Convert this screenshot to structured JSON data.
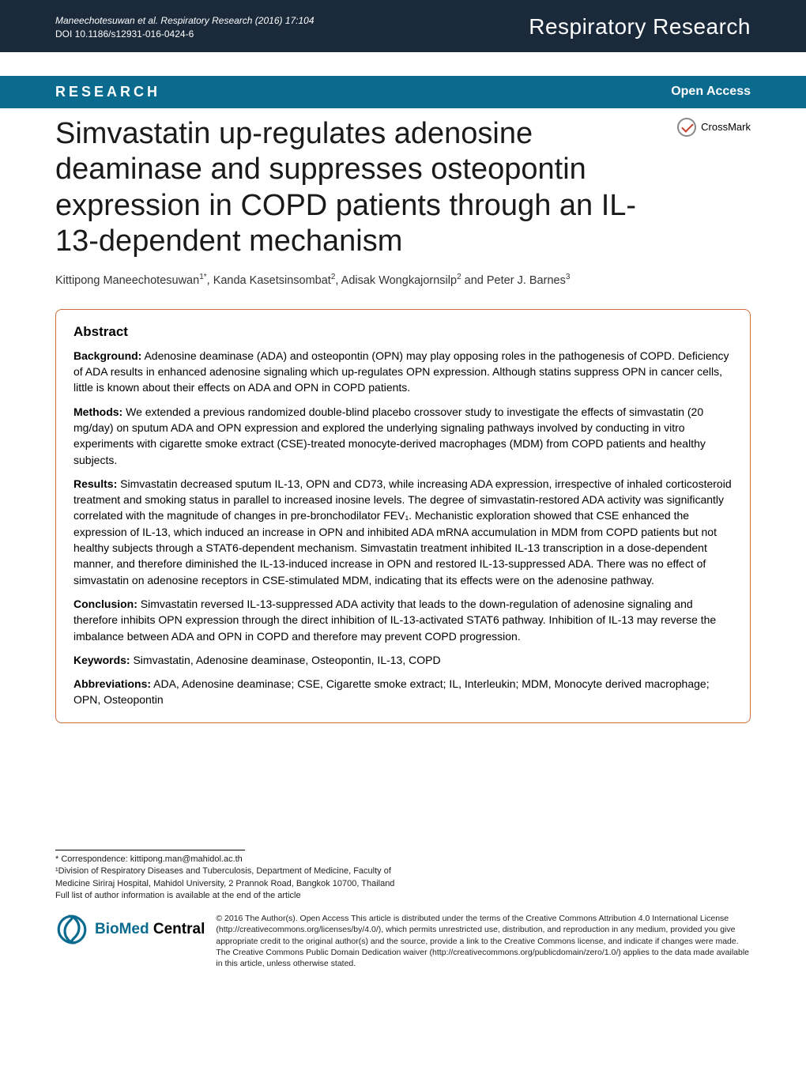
{
  "header": {
    "citation": "Maneechotesuwan et al. Respiratory Research  (2016) 17:104",
    "doi": "DOI 10.1186/s12931-016-0424-6",
    "journal": "Respiratory Research"
  },
  "research_bar": {
    "label": "RESEARCH",
    "open_access": "Open Access"
  },
  "crossmark_label": "CrossMark",
  "title": "Simvastatin up-regulates adenosine deaminase and suppresses osteopontin expression in COPD patients through an IL-13-dependent mechanism",
  "authors_html": "Kittipong Maneechotesuwan<sup>1*</sup>, Kanda Kasetsinsombat<sup>2</sup>, Adisak Wongkajornsilp<sup>2</sup> and Peter J. Barnes<sup>3</sup>",
  "abstract": {
    "heading": "Abstract",
    "background": {
      "label": "Background:",
      "text": " Adenosine deaminase (ADA) and osteopontin (OPN) may play opposing roles in the pathogenesis of COPD. Deficiency of ADA results in enhanced adenosine signaling which up-regulates OPN expression. Although statins suppress OPN in cancer cells, little is known about their effects on ADA and OPN in COPD patients."
    },
    "methods": {
      "label": "Methods:",
      "text": " We extended a previous randomized double-blind placebo crossover study to investigate the effects of simvastatin (20 mg/day) on sputum ADA and OPN expression and explored the underlying signaling pathways involved by conducting in vitro experiments with cigarette smoke extract (CSE)-treated monocyte-derived macrophages (MDM) from COPD patients and healthy subjects."
    },
    "results": {
      "label": "Results:",
      "text": " Simvastatin decreased sputum IL-13, OPN and CD73, while increasing ADA expression, irrespective of inhaled corticosteroid treatment and smoking status in parallel to increased inosine levels. The degree of simvastatin-restored ADA activity was significantly correlated with the magnitude of changes in pre-bronchodilator FEV₁. Mechanistic exploration showed that CSE enhanced the expression of IL-13, which induced an increase in OPN and inhibited ADA mRNA accumulation in MDM from COPD patients but not healthy subjects through a STAT6-dependent mechanism. Simvastatin treatment inhibited IL-13 transcription in a dose-dependent manner, and therefore diminished the IL-13-induced increase in OPN and restored IL-13-suppressed ADA. There was no effect of simvastatin on adenosine receptors in CSE-stimulated MDM, indicating that its effects were on the adenosine pathway."
    },
    "conclusion": {
      "label": "Conclusion:",
      "text": " Simvastatin reversed IL-13-suppressed ADA activity that leads to the down-regulation of adenosine signaling and therefore inhibits OPN expression through the direct inhibition of IL-13-activated STAT6 pathway. Inhibition of IL-13 may reverse the imbalance between ADA and OPN in COPD and therefore may prevent COPD progression."
    },
    "keywords": {
      "label": "Keywords:",
      "text": " Simvastatin, Adenosine deaminase, Osteopontin, IL-13, COPD"
    },
    "abbreviations": {
      "label": "Abbreviations:",
      "text": " ADA, Adenosine deaminase; CSE, Cigarette smoke extract; IL, Interleukin; MDM, Monocyte derived macrophage; OPN, Osteopontin"
    }
  },
  "footer": {
    "correspondence": "* Correspondence: kittipong.man@mahidol.ac.th",
    "affiliation": "¹Division of Respiratory Diseases and Tuberculosis, Department of Medicine, Faculty of Medicine Siriraj Hospital, Mahidol University, 2 Prannok Road, Bangkok 10700, Thailand",
    "full_list": "Full list of author information is available at the end of the article",
    "bmc_label_bio": "BioMed",
    "bmc_label_central": " Central",
    "license": "© 2016 The Author(s). Open Access This article is distributed under the terms of the Creative Commons Attribution 4.0 International License (http://creativecommons.org/licenses/by/4.0/), which permits unrestricted use, distribution, and reproduction in any medium, provided you give appropriate credit to the original author(s) and the source, provide a link to the Creative Commons license, and indicate if changes were made. The Creative Commons Public Domain Dedication waiver (http://creativecommons.org/publicdomain/zero/1.0/) applies to the data made available in this article, unless otherwise stated."
  },
  "colors": {
    "header_bg": "#1a2a3a",
    "research_bg": "#0a6b8f",
    "abstract_border": "#d16d3a",
    "bmc_blue": "#0a6b8f"
  }
}
